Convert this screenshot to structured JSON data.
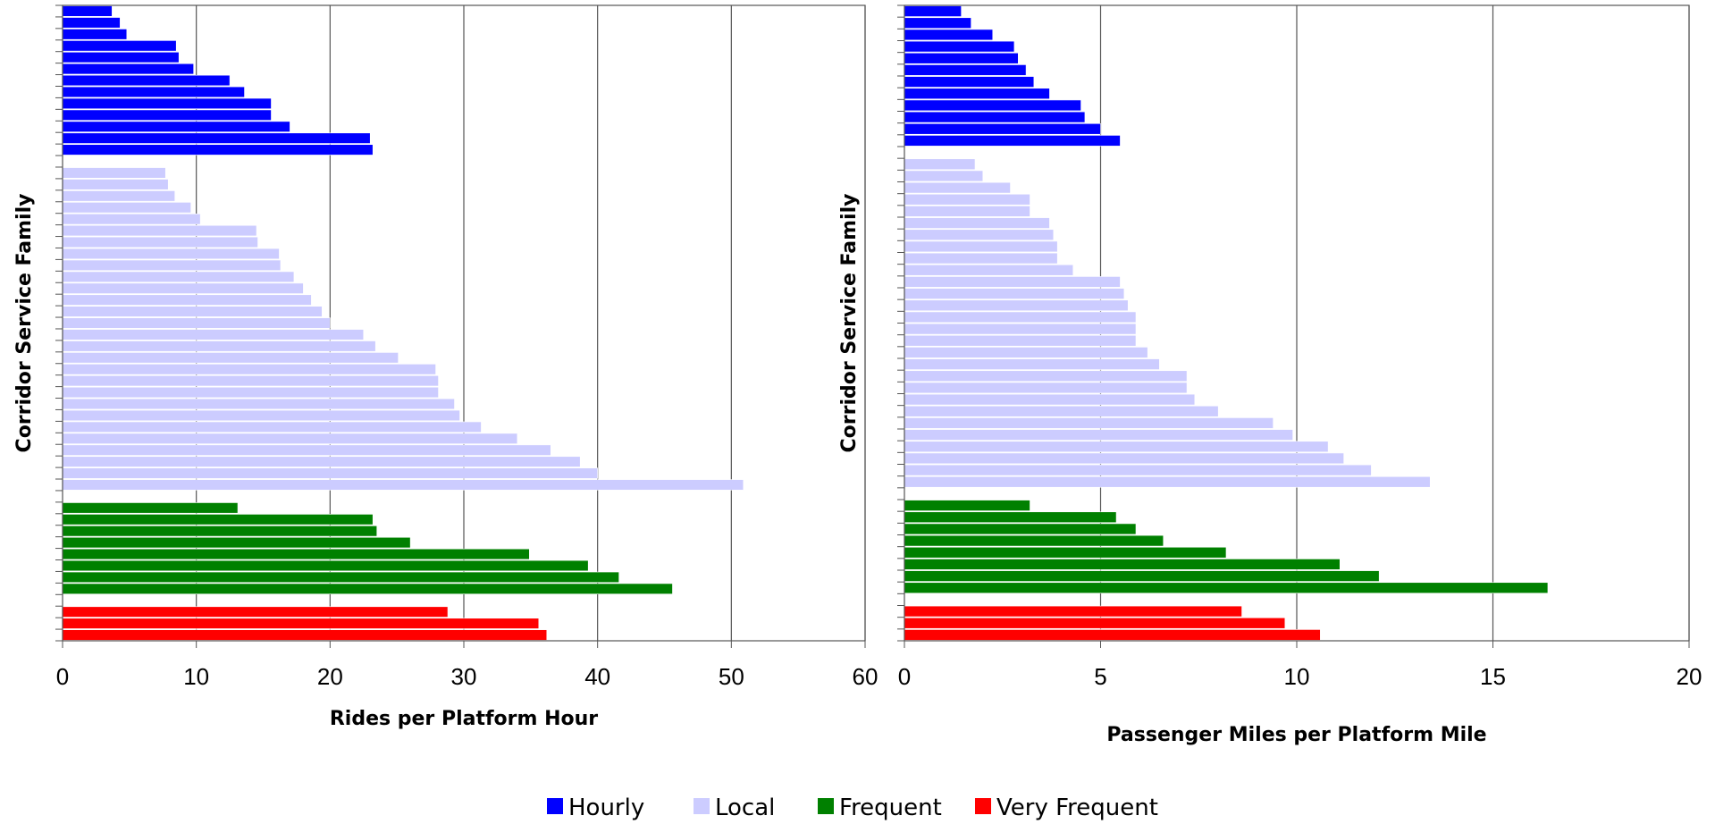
{
  "chart_data": [
    {
      "type": "bar",
      "orientation": "horizontal",
      "xlabel": "Rides per Platform Hour",
      "ylabel": "Corridor Service Family",
      "xlim": [
        0,
        60
      ],
      "xticks": [
        "0",
        "10",
        "20",
        "30",
        "40",
        "50",
        "60"
      ],
      "grid": "vertical",
      "groups": [
        {
          "name": "Hourly",
          "values": [
            3.7,
            4.3,
            4.8,
            8.5,
            8.7,
            9.8,
            12.5,
            13.6,
            15.6,
            15.6,
            17.0,
            23.0,
            23.2
          ]
        },
        {
          "name": "Local",
          "values": [
            7.7,
            7.9,
            8.4,
            9.6,
            10.3,
            14.5,
            14.6,
            16.2,
            16.3,
            17.3,
            18.0,
            18.6,
            19.4,
            20.0,
            22.5,
            23.4,
            25.1,
            27.9,
            28.1,
            28.1,
            29.3,
            29.7,
            31.3,
            34.0,
            36.5,
            38.7,
            40.0,
            50.9
          ]
        },
        {
          "name": "Frequent",
          "values": [
            13.1,
            23.2,
            23.5,
            26.0,
            34.9,
            39.3,
            41.6,
            45.6
          ]
        },
        {
          "name": "Very Frequent",
          "values": [
            28.8,
            35.6,
            36.2
          ]
        }
      ]
    },
    {
      "type": "bar",
      "orientation": "horizontal",
      "xlabel": "Passenger Miles per Platform Mile",
      "ylabel": "Corridor Service Family",
      "xlim": [
        0,
        20
      ],
      "xticks": [
        "0",
        "5",
        "10",
        "15",
        "20"
      ],
      "grid": "vertical",
      "groups": [
        {
          "name": "Hourly",
          "values": [
            1.45,
            1.7,
            2.25,
            2.8,
            2.9,
            3.1,
            3.3,
            3.7,
            4.5,
            4.6,
            5.0,
            5.5
          ]
        },
        {
          "name": "Local",
          "values": [
            1.8,
            2.0,
            2.7,
            3.2,
            3.2,
            3.7,
            3.8,
            3.9,
            3.9,
            4.3,
            5.5,
            5.6,
            5.7,
            5.9,
            5.9,
            5.9,
            6.2,
            6.5,
            7.2,
            7.2,
            7.4,
            8.0,
            9.4,
            9.9,
            10.8,
            11.2,
            11.9,
            13.4
          ]
        },
        {
          "name": "Frequent",
          "values": [
            3.2,
            5.4,
            5.9,
            6.6,
            8.2,
            11.1,
            12.1,
            16.4
          ]
        },
        {
          "name": "Very Frequent",
          "values": [
            8.6,
            9.7,
            10.6
          ]
        }
      ]
    }
  ],
  "legend": {
    "items": [
      {
        "label": "Hourly",
        "color": "#0000FF"
      },
      {
        "label": "Local",
        "color": "#CCCCFF"
      },
      {
        "label": "Frequent",
        "color": "#008000"
      },
      {
        "label": "Very Frequent",
        "color": "#FF0000"
      }
    ]
  }
}
